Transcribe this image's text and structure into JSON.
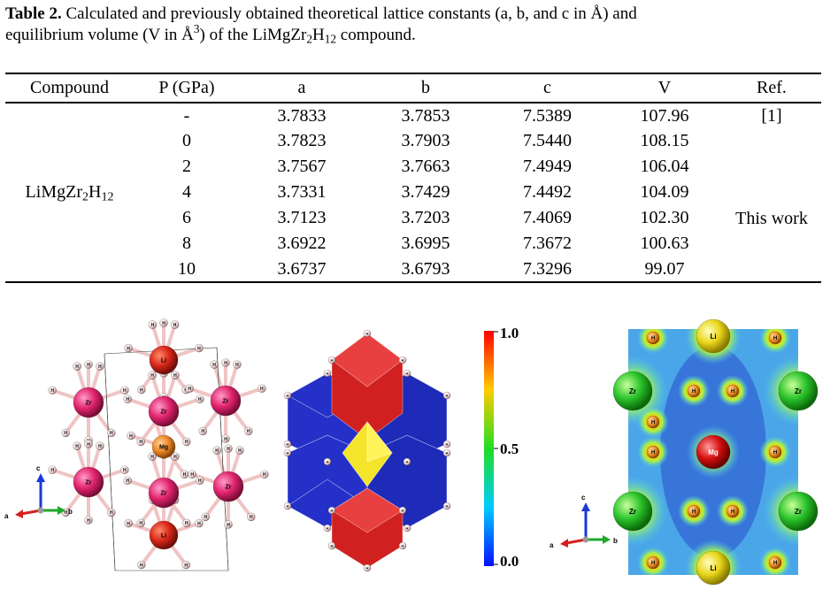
{
  "caption": {
    "label": "Table 2.",
    "line1": " Calculated and previously obtained theoretical lattice constants (a, b, and c in Å) and",
    "line2_pre": "equilibrium volume (V in Å",
    "line2_sup": "3",
    "line2_mid": ") of the LiMgZr",
    "sub2": "2",
    "h": "H",
    "sub12": "12",
    "line2_end": " compound."
  },
  "table": {
    "headers": [
      "Compound",
      "P (GPa)",
      "a",
      "b",
      "c",
      "V",
      "Ref."
    ],
    "compound": {
      "base": "LiMgZr",
      "sub2": "2",
      "h": "H",
      "sub12": "12"
    },
    "rows": [
      {
        "p": "-",
        "a": "3.7833",
        "b": "3.7853",
        "c": "7.5389",
        "v": "107.96"
      },
      {
        "p": "0",
        "a": "3.7823",
        "b": "3.7903",
        "c": "7.5440",
        "v": "108.15"
      },
      {
        "p": "2",
        "a": "3.7567",
        "b": "3.7663",
        "c": "7.4949",
        "v": "106.04"
      },
      {
        "p": "4",
        "a": "3.7331",
        "b": "3.7429",
        "c": "7.4492",
        "v": "104.09"
      },
      {
        "p": "6",
        "a": "3.7123",
        "b": "3.7203",
        "c": "7.4069",
        "v": "102.30"
      },
      {
        "p": "8",
        "a": "3.6922",
        "b": "3.6995",
        "c": "7.3672",
        "v": "100.63"
      },
      {
        "p": "10",
        "a": "3.6737",
        "b": "3.6793",
        "c": "7.3296",
        "v": "99.07"
      }
    ],
    "ref1": "[1]",
    "ref2": "This work"
  },
  "figure": {
    "axes": {
      "a": "a",
      "b": "b",
      "c": "c"
    },
    "atoms": {
      "li": "Li",
      "mg": "Mg",
      "zr": "Zr",
      "h": "H"
    },
    "colorbar": {
      "max": "1.0",
      "mid": "0.5",
      "min": "0.0"
    }
  }
}
